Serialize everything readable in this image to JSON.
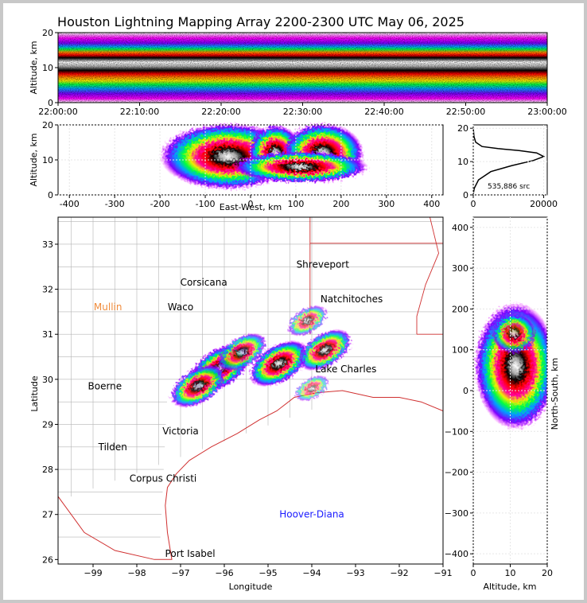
{
  "title": "Houston Lightning Mapping Array 2200-2300 UTC May 06, 2025",
  "colors": {
    "frame": "#c8c8c8",
    "coast": "#d03030",
    "county": "#b4b4b4"
  },
  "chart_data": [
    {
      "id": "time-altitude",
      "type": "heatmap",
      "ylabel": "Altitude, km",
      "ylim": [
        0,
        20
      ],
      "yticks": [
        "0",
        "10",
        "20"
      ],
      "xticks": [
        "22:00:00",
        "22:10:00",
        "22:20:00",
        "22:30:00",
        "22:40:00",
        "22:50:00",
        "23:00:00"
      ],
      "band_center_km": 11.5
    },
    {
      "id": "east-west-altitude",
      "type": "heatmap",
      "xlabel": "East-West, km",
      "ylabel": "Altitude, km",
      "xlim": [
        -425,
        425
      ],
      "ylim": [
        0,
        20
      ],
      "xticks": [
        "-400",
        "-300",
        "-200",
        "-100",
        "0",
        "100",
        "200",
        "300",
        "400"
      ],
      "yticks": [
        "0",
        "10",
        "20"
      ]
    },
    {
      "id": "altitude-histogram",
      "type": "line",
      "xlim": [
        0,
        21000
      ],
      "ylim": [
        0,
        21
      ],
      "xticks": [
        "0",
        "20000"
      ],
      "yticks": [
        "0",
        "10",
        "20"
      ],
      "annotation": "535,886 src",
      "x": [
        0,
        300,
        1500,
        5000,
        11000,
        17000,
        20000,
        18000,
        13000,
        7000,
        2500,
        700,
        200,
        0
      ],
      "y": [
        0.3,
        2,
        4.5,
        7,
        8.8,
        10.3,
        11.5,
        12.6,
        13.3,
        13.9,
        14.5,
        15.8,
        17.5,
        20
      ]
    },
    {
      "id": "plan-view-map",
      "type": "heatmap",
      "xlabel": "Longitude",
      "ylabel": "Latitude",
      "xlim": [
        -99.8,
        -91.0
      ],
      "ylim": [
        25.9,
        33.6
      ],
      "xticks": [
        "−99",
        "−98",
        "−97",
        "−96",
        "−95",
        "−94",
        "−93",
        "−92",
        "−91"
      ],
      "yticks": [
        "26",
        "27",
        "28",
        "29",
        "30",
        "31",
        "32",
        "33"
      ],
      "labels": [
        {
          "text": "Shreveport",
          "lon": -93.75,
          "lat": 32.55,
          "color": "#000000"
        },
        {
          "text": "Corsicana",
          "lon": -96.47,
          "lat": 32.15,
          "color": "#000000"
        },
        {
          "text": "Mullin",
          "lon": -98.66,
          "lat": 31.6,
          "color": "#f08c3c"
        },
        {
          "text": "Waco",
          "lon": -97.0,
          "lat": 31.6,
          "color": "#000000"
        },
        {
          "text": "Natchitoches",
          "lon": -93.09,
          "lat": 31.78,
          "color": "#000000"
        },
        {
          "text": "Lake Charles",
          "lon": -93.22,
          "lat": 30.23,
          "color": "#000000"
        },
        {
          "text": "Boerne",
          "lon": -98.73,
          "lat": 29.85,
          "color": "#000000"
        },
        {
          "text": "Victoria",
          "lon": -97.0,
          "lat": 28.85,
          "color": "#000000"
        },
        {
          "text": "Tilden",
          "lon": -98.55,
          "lat": 28.5,
          "color": "#000000"
        },
        {
          "text": "Corpus Christi",
          "lon": -97.4,
          "lat": 27.8,
          "color": "#000000"
        },
        {
          "text": "Hoover-Diana",
          "lon": -94.0,
          "lat": 27.0,
          "color": "#1a1aff"
        },
        {
          "text": "Port Isabel",
          "lon": -96.78,
          "lat": 26.13,
          "color": "#000000"
        }
      ],
      "storm_cells": [
        {
          "lon": -96.1,
          "lat": 30.25,
          "intensity": 1.0
        },
        {
          "lon": -96.6,
          "lat": 29.85,
          "intensity": 0.85
        },
        {
          "lon": -95.6,
          "lat": 30.6,
          "intensity": 0.7
        },
        {
          "lon": -94.75,
          "lat": 30.35,
          "intensity": 0.95
        },
        {
          "lon": -93.7,
          "lat": 30.65,
          "intensity": 0.8
        },
        {
          "lon": -94.1,
          "lat": 31.3,
          "intensity": 0.45
        },
        {
          "lon": -94.0,
          "lat": 29.8,
          "intensity": 0.3
        }
      ]
    },
    {
      "id": "altitude-north-south",
      "type": "heatmap",
      "xlabel": "Altitude, km",
      "ylabel": "North-South, km",
      "xlim": [
        0,
        20
      ],
      "ylim": [
        -425,
        425
      ],
      "xticks": [
        "0",
        "10",
        "20"
      ],
      "yticks": [
        "−400",
        "−300",
        "−200",
        "−100",
        "0",
        "100",
        "200",
        "300",
        "400"
      ]
    }
  ]
}
